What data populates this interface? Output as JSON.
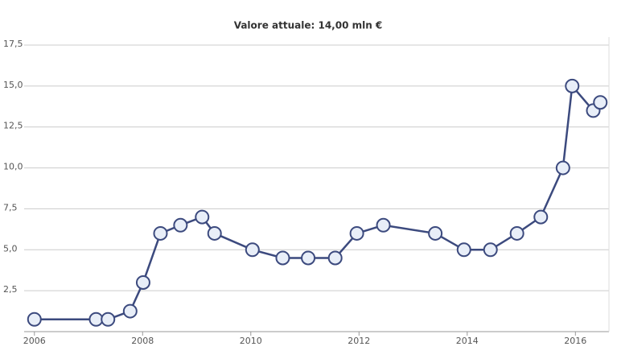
{
  "chart_data": {
    "type": "line",
    "title": "Valore attuale: 14,00 mln €",
    "series": [
      {
        "color": "#3c4a7e",
        "x": [
          2006.0,
          2007.14,
          2007.36,
          2007.77,
          2008.01,
          2008.33,
          2008.7,
          2009.1,
          2009.33,
          2010.03,
          2010.59,
          2011.06,
          2011.56,
          2011.96,
          2012.45,
          2013.41,
          2013.94,
          2014.43,
          2014.92,
          2015.36,
          2015.77,
          2015.94,
          2016.33,
          2016.46
        ],
        "values": [
          0.75,
          0.75,
          0.75,
          1.25,
          3.0,
          6.0,
          6.5,
          7.0,
          6.0,
          5.0,
          4.5,
          4.5,
          4.5,
          6.0,
          6.5,
          6.0,
          5.0,
          5.0,
          6.0,
          7.0,
          10.0,
          15.0,
          13.5,
          14.0
        ]
      }
    ],
    "xlim": [
      2005.81,
      2016.62
    ],
    "xticks": [
      2006,
      2008,
      2010,
      2012,
      2014,
      2016
    ],
    "ylim": [
      0,
      17.5
    ],
    "yticks": [
      {
        "value": 2.5,
        "label": "2,5"
      },
      {
        "value": 5,
        "label": "5,0"
      },
      {
        "value": 7.5,
        "label": "7,5"
      },
      {
        "value": 10,
        "label": "10,0"
      },
      {
        "value": 12.5,
        "label": "12,5"
      },
      {
        "value": 15,
        "label": "15,0"
      },
      {
        "value": 17.5,
        "label": "17,5"
      }
    ],
    "grid": true
  }
}
